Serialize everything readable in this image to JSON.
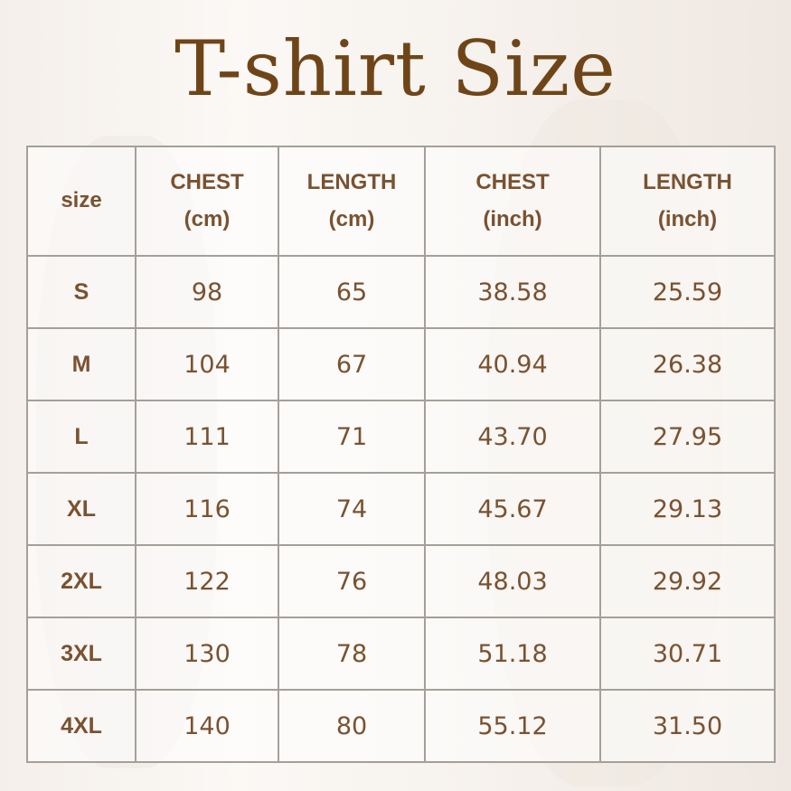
{
  "title": "T-shirt Size",
  "table": {
    "headers": [
      {
        "line1": "size",
        "line2": ""
      },
      {
        "line1": "CHEST",
        "line2": "(cm)"
      },
      {
        "line1": "LENGTH",
        "line2": "(cm)"
      },
      {
        "line1": "CHEST",
        "line2": "(inch)"
      },
      {
        "line1": "LENGTH",
        "line2": "(inch)"
      }
    ],
    "rows": [
      [
        "S",
        "98",
        "65",
        "38.58",
        "25.59"
      ],
      [
        "M",
        "104",
        "67",
        "40.94",
        "26.38"
      ],
      [
        "L",
        "111",
        "71",
        "43.70",
        "27.95"
      ],
      [
        "XL",
        "116",
        "74",
        "45.67",
        "29.13"
      ],
      [
        "2XL",
        "122",
        "76",
        "48.03",
        "29.92"
      ],
      [
        "3XL",
        "130",
        "78",
        "51.18",
        "30.71"
      ],
      [
        "4XL",
        "140",
        "80",
        "55.12",
        "31.50"
      ]
    ]
  },
  "colors": {
    "title": "#6f4518",
    "text": "#7a5230",
    "grid": "#a59f99"
  }
}
